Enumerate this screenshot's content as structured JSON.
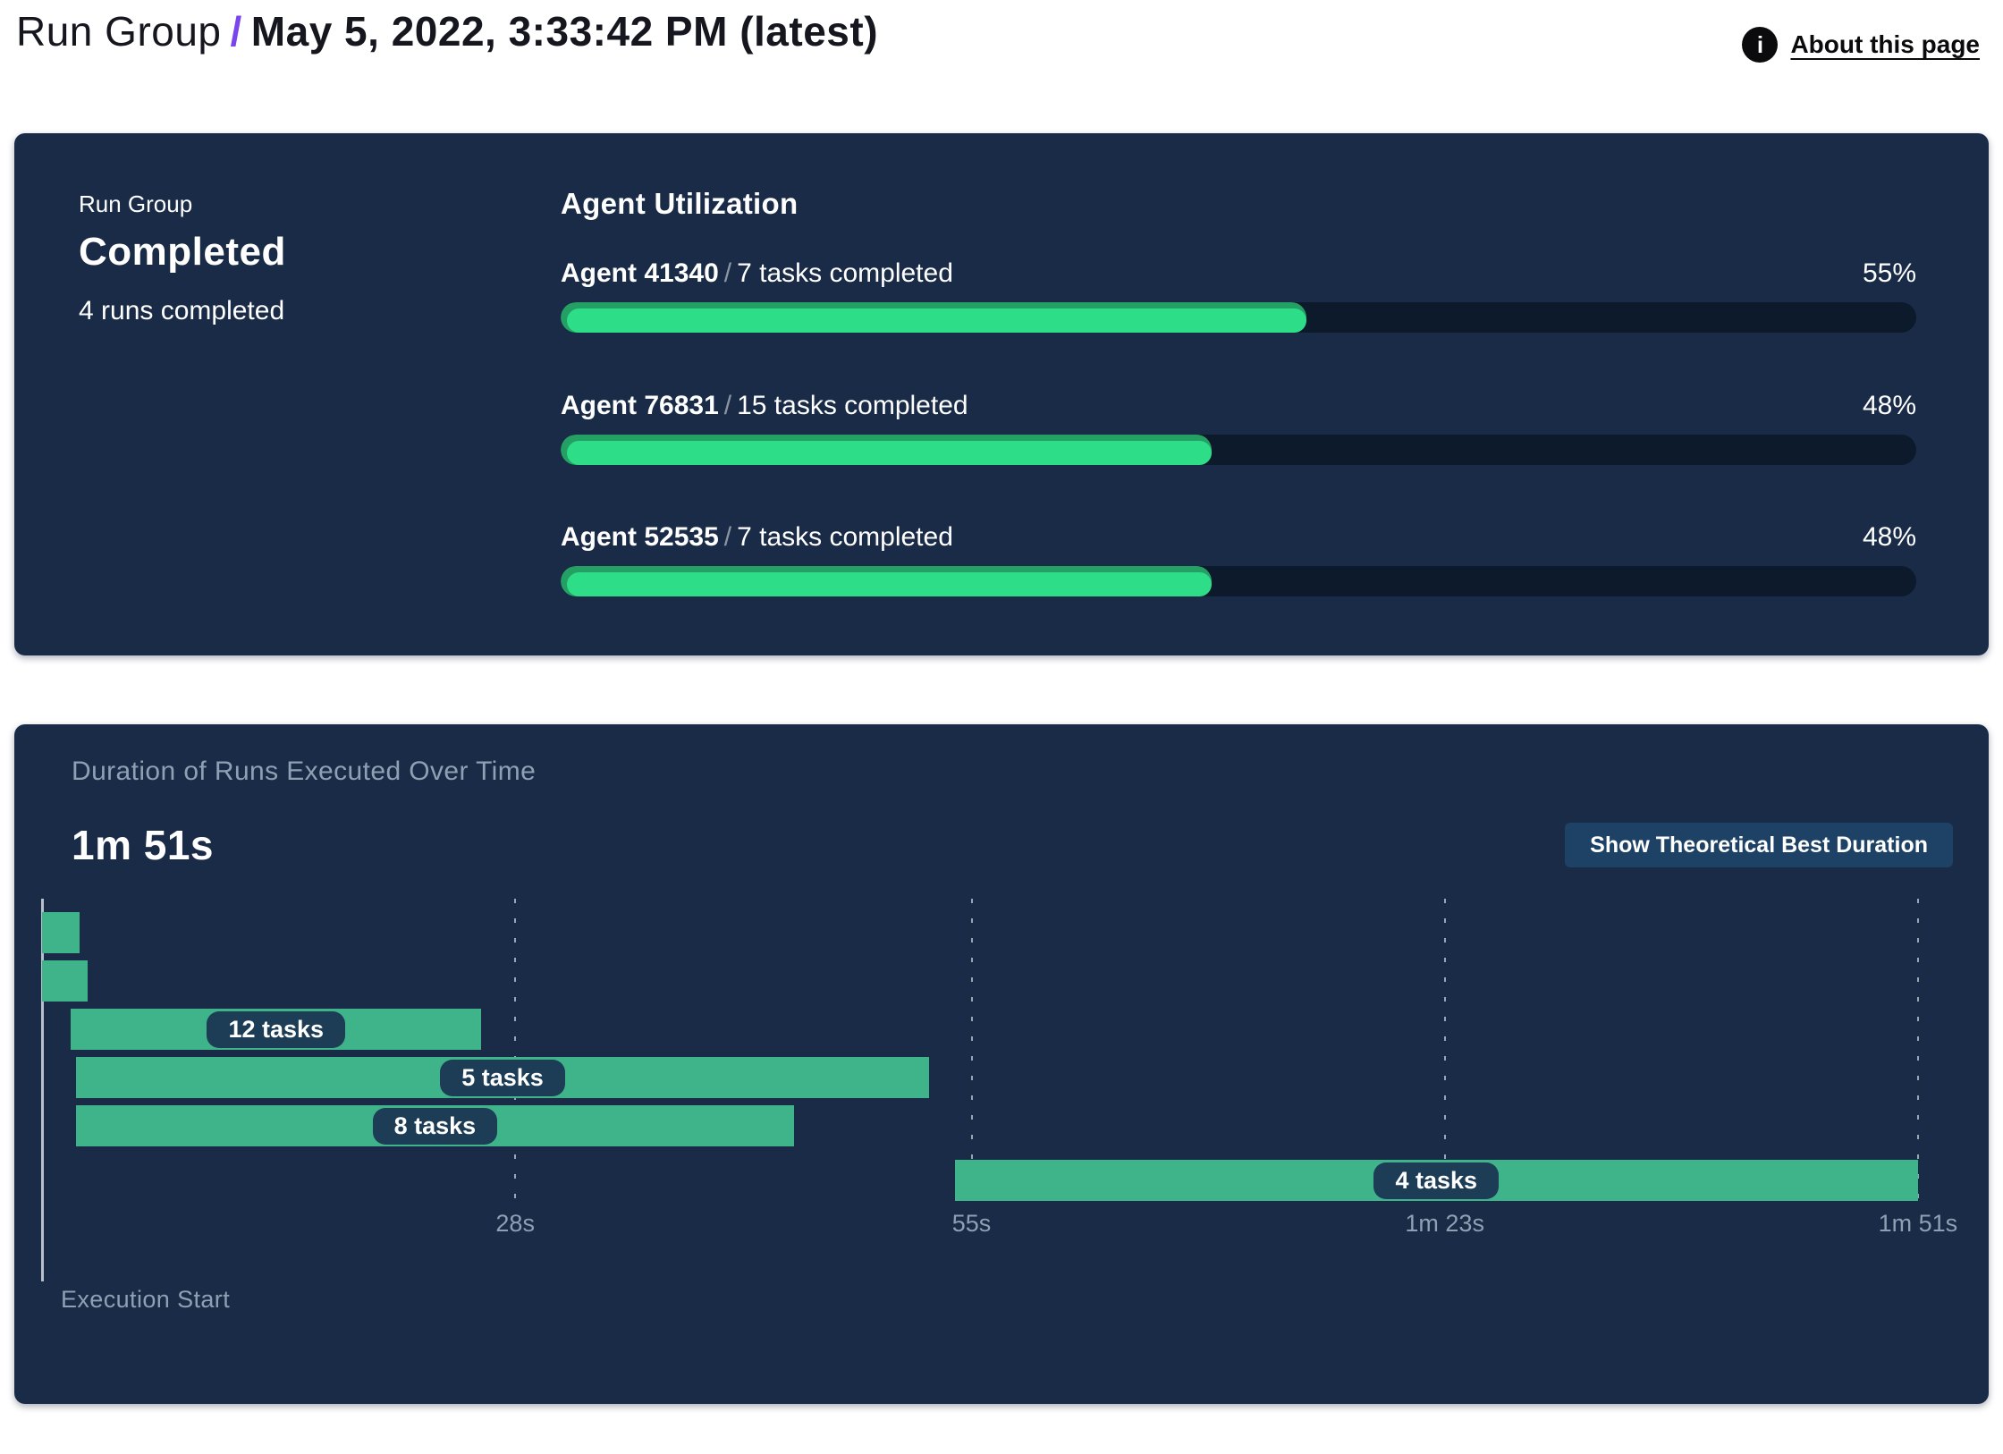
{
  "header": {
    "breadcrumb_root": "Run Group",
    "breadcrumb_separator": "/",
    "title": "May 5, 2022, 3:33:42 PM (latest)",
    "about_link": "About this page",
    "info_icon_glyph": "i"
  },
  "summary": {
    "eyebrow": "Run Group",
    "status": "Completed",
    "subtext": "4 runs completed"
  },
  "agent_utilization": {
    "title": "Agent Utilization",
    "separator": "/",
    "agents": [
      {
        "name": "Agent 41340",
        "tasks": "7 tasks completed",
        "percent": 55
      },
      {
        "name": "Agent 76831",
        "tasks": "15 tasks completed",
        "percent": 48
      },
      {
        "name": "Agent 52535",
        "tasks": "7 tasks completed",
        "percent": 48
      }
    ]
  },
  "duration_panel": {
    "title": "Duration of Runs Executed Over Time",
    "total_duration": "1m 51s",
    "button_label": "Show Theoretical Best Duration",
    "execution_start_label": "Execution Start"
  },
  "chart_data": {
    "type": "gantt",
    "title": "Duration of Runs Executed Over Time",
    "total_duration": "1m 51s",
    "time_unit": "seconds",
    "xlim": [
      0,
      111
    ],
    "x_ticks": [
      {
        "label": "28s",
        "seconds": 28
      },
      {
        "label": "55s",
        "seconds": 55
      },
      {
        "label": "1m 23s",
        "seconds": 83
      },
      {
        "label": "1m 51s",
        "seconds": 111
      }
    ],
    "grid": "dashed-vertical",
    "runs": [
      {
        "start": 0,
        "end": 2.2,
        "label": ""
      },
      {
        "start": 0,
        "end": 2.7,
        "label": ""
      },
      {
        "start": 1.7,
        "end": 26,
        "label": "12 tasks"
      },
      {
        "start": 2,
        "end": 52.5,
        "label": "5 tasks"
      },
      {
        "start": 2,
        "end": 44.5,
        "label": "8 tasks"
      },
      {
        "start": 54,
        "end": 111,
        "label": "4 tasks"
      }
    ]
  },
  "colors": {
    "navy": "#192b47",
    "track": "#0d1a2c",
    "green": "#2edd87",
    "green_dark": "#25a065",
    "seafoam": "#3fb38a",
    "pill": "#1d3c55",
    "button": "#1d4265",
    "muted": "#8fa0b3",
    "purple": "#7a45ec",
    "axis": "#b9c0cc"
  }
}
